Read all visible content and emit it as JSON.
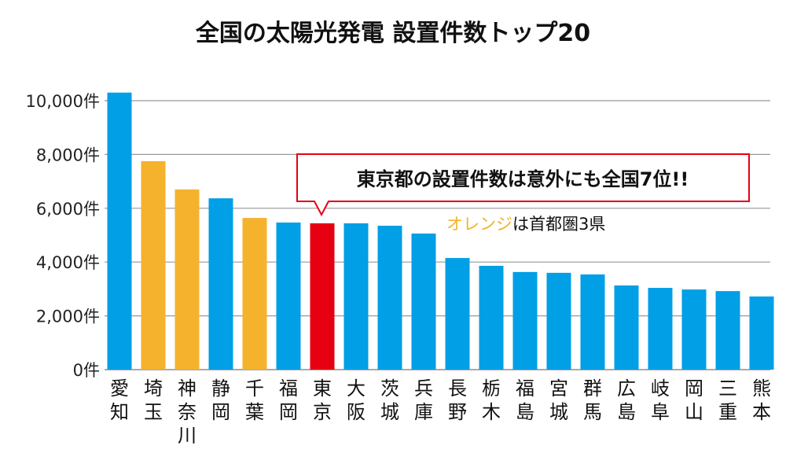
{
  "chart_data": {
    "type": "bar",
    "title": "全国の太陽光発電 設置件数トップ20",
    "categories": [
      "愛知",
      "埼玉",
      "神奈川",
      "静岡",
      "千葉",
      "福岡",
      "東京",
      "大阪",
      "茨城",
      "兵庫",
      "長野",
      "栃木",
      "福島",
      "宮城",
      "群馬",
      "広島",
      "岐阜",
      "岡山",
      "三重",
      "熊本"
    ],
    "values": [
      10300,
      7750,
      6700,
      6370,
      5640,
      5470,
      5440,
      5440,
      5350,
      5060,
      4150,
      3860,
      3630,
      3600,
      3540,
      3130,
      3040,
      2980,
      2920,
      2720
    ],
    "highlight": [
      "blue",
      "orange",
      "orange",
      "blue",
      "orange",
      "blue",
      "red",
      "blue",
      "blue",
      "blue",
      "blue",
      "blue",
      "blue",
      "blue",
      "blue",
      "blue",
      "blue",
      "blue",
      "blue",
      "blue"
    ],
    "colors": {
      "blue": "#009fe6",
      "orange": "#f5b22d",
      "red": "#e60012",
      "grid": "#999999",
      "callout_border": "#e60012"
    },
    "ylim": [
      0,
      10000
    ],
    "yticks": [
      0,
      2000,
      4000,
      6000,
      8000,
      10000
    ],
    "ytick_labels": [
      "0件",
      "2,000件",
      "4,000件",
      "6,000件",
      "8,000件",
      "10,000件"
    ],
    "grid": true,
    "xlabel": "",
    "ylabel": "",
    "annotations": {
      "callout": "東京都の設置件数は意外にも全国7位!!",
      "note_highlight": "オレンジ",
      "note_rest": "は首都圏3県"
    }
  }
}
